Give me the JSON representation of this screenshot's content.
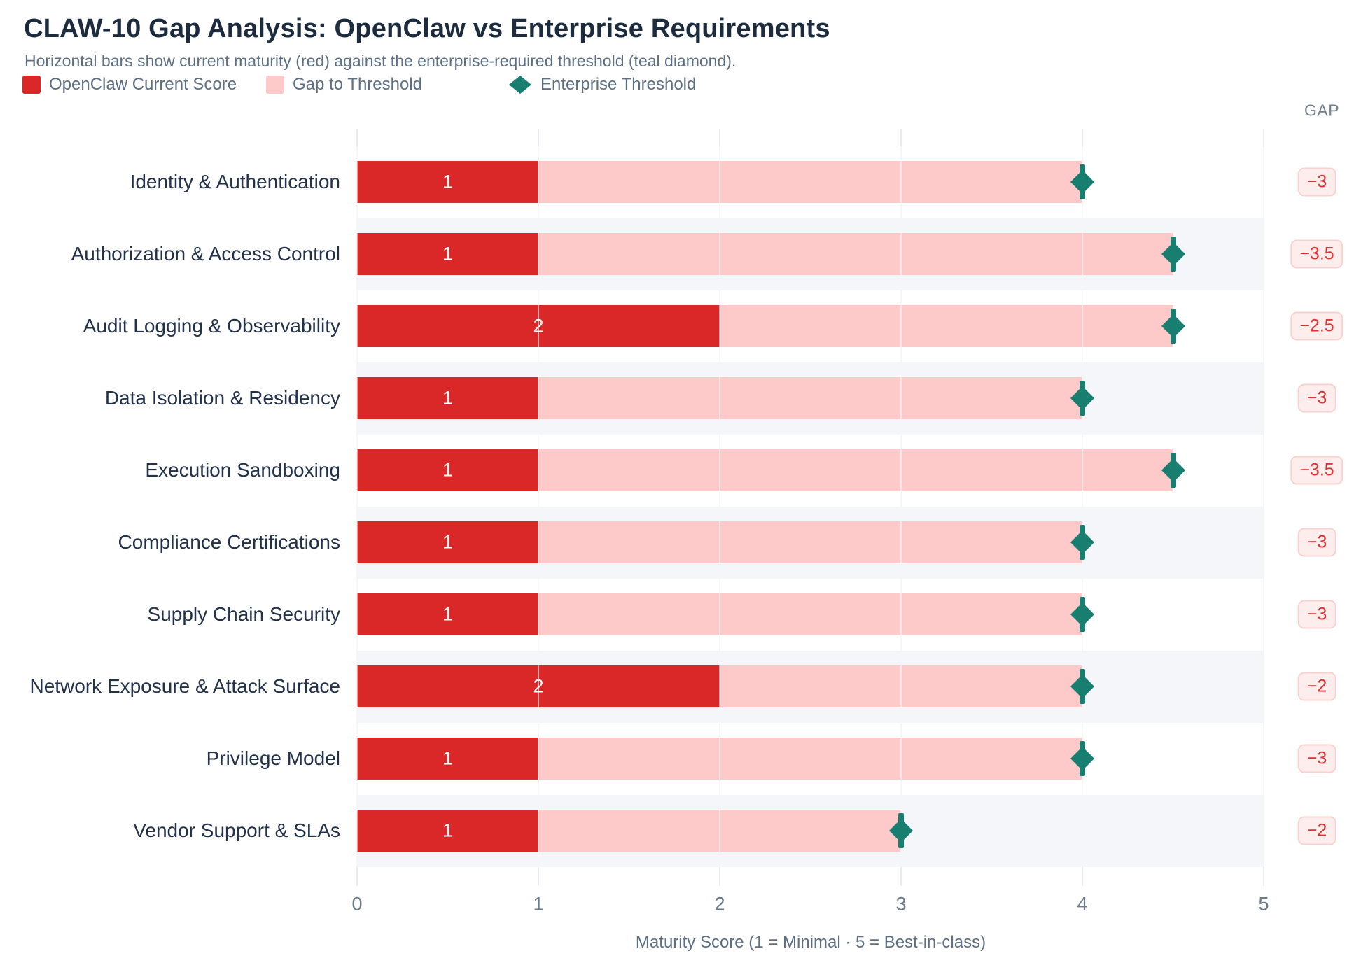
{
  "title": "CLAW-10 Gap Analysis: OpenClaw vs Enterprise Requirements",
  "subtitle": "Horizontal bars show current maturity (red) against the enterprise-required threshold (teal diamond).",
  "legend": [
    {
      "label": "OpenClaw Current Score",
      "swatch": "square",
      "color": "#d92827"
    },
    {
      "label": "Gap to Threshold",
      "swatch": "square",
      "color": "#fdc9c9"
    },
    {
      "label": "Enterprise Threshold",
      "swatch": "diamond",
      "color": "#177e70"
    }
  ],
  "gap_column_header": "GAP",
  "chart_data": {
    "type": "bar",
    "orientation": "horizontal",
    "title": "CLAW-10 Gap Analysis: OpenClaw vs Enterprise Requirements",
    "xlabel": "Maturity Score (1 = Minimal · 5 = Best-in-class)",
    "ylabel": "",
    "xlim": [
      0,
      5
    ],
    "x_ticks": [
      "0",
      "1",
      "2",
      "3",
      "4",
      "5"
    ],
    "grid": true,
    "legend_position": "top-left",
    "categories": [
      "Identity & Authentication",
      "Authorization & Access Control",
      "Audit Logging & Observability",
      "Data Isolation & Residency",
      "Execution Sandboxing",
      "Compliance Certifications",
      "Supply Chain Security",
      "Network Exposure & Attack Surface",
      "Privilege Model",
      "Vendor Support & SLAs"
    ],
    "series": [
      {
        "name": "OpenClaw Current Score",
        "values": [
          1,
          1,
          2,
          1,
          1,
          1,
          1,
          2,
          1,
          1
        ]
      },
      {
        "name": "Enterprise Threshold",
        "values": [
          4,
          4.5,
          4.5,
          4,
          4.5,
          4,
          4,
          4,
          4,
          3
        ]
      }
    ],
    "bar_value_labels": [
      "1",
      "1",
      "2",
      "1",
      "1",
      "1",
      "1",
      "2",
      "1",
      "1"
    ],
    "gap_labels": [
      "−3",
      "−3.5",
      "−2.5",
      "−3",
      "−3.5",
      "−3",
      "−3",
      "−2",
      "−3",
      "−2"
    ],
    "colors": {
      "current_bar": "#d92827",
      "gap_bar": "#fdc9c9",
      "threshold_marker": "#177e70",
      "row_band": "#f4f6f9",
      "gridline": "#e8ecf0",
      "badge_bg": "#fdeeed",
      "badge_border": "#f8d2cf",
      "badge_text": "#e03231",
      "category_text": "#22324a",
      "muted_text": "#5d7083"
    }
  }
}
